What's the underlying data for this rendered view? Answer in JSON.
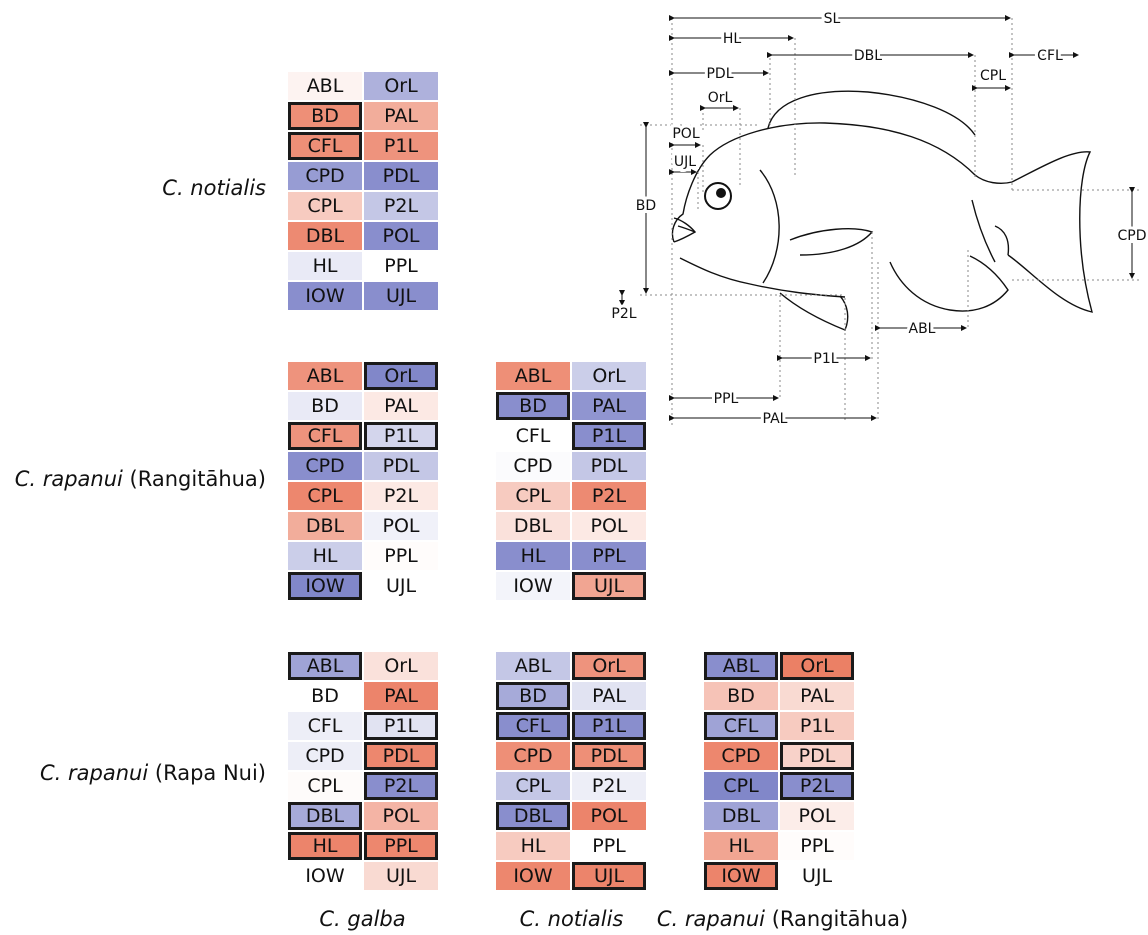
{
  "colors": {
    "red": "#e8694a",
    "blue": "#6b72c0",
    "white": "#ffffff",
    "border": "#1a1a1a"
  },
  "rows": [
    {
      "species": "C. notialis",
      "locality": ""
    },
    {
      "species": "C. rapanui",
      "locality": "(Rangitāhua)"
    },
    {
      "species": "C. rapanui",
      "locality": "(Rapa Nui)"
    }
  ],
  "columns": [
    {
      "species": "C. galba",
      "locality": ""
    },
    {
      "species": "C. notialis",
      "locality": ""
    },
    {
      "species": "C. rapanui",
      "locality": "(Rangitāhua)"
    }
  ],
  "grids": [
    {
      "row": 0,
      "col": 0,
      "cells": [
        {
          "t": "ABL",
          "v": 0.08,
          "b": false
        },
        {
          "t": "OrL",
          "v": -0.55,
          "b": false
        },
        {
          "t": "BD",
          "v": 0.75,
          "b": true
        },
        {
          "t": "PAL",
          "v": 0.55,
          "b": false
        },
        {
          "t": "CFL",
          "v": 0.75,
          "b": true
        },
        {
          "t": "P1L",
          "v": 0.72,
          "b": false
        },
        {
          "t": "CPD",
          "v": -0.7,
          "b": false
        },
        {
          "t": "PDL",
          "v": -0.8,
          "b": false
        },
        {
          "t": "CPL",
          "v": 0.35,
          "b": false
        },
        {
          "t": "P2L",
          "v": -0.4,
          "b": false
        },
        {
          "t": "DBL",
          "v": 0.78,
          "b": false
        },
        {
          "t": "POL",
          "v": -0.8,
          "b": false
        },
        {
          "t": "HL",
          "v": -0.15,
          "b": false
        },
        {
          "t": "PPL",
          "v": 0.0,
          "b": false
        },
        {
          "t": "IOW",
          "v": -0.8,
          "b": false
        },
        {
          "t": "UJL",
          "v": -0.8,
          "b": false
        }
      ]
    },
    {
      "row": 1,
      "col": 0,
      "cells": [
        {
          "t": "ABL",
          "v": 0.72,
          "b": false
        },
        {
          "t": "OrL",
          "v": -0.85,
          "b": true
        },
        {
          "t": "BD",
          "v": -0.15,
          "b": false
        },
        {
          "t": "PAL",
          "v": 0.15,
          "b": false
        },
        {
          "t": "CFL",
          "v": 0.72,
          "b": true
        },
        {
          "t": "P1L",
          "v": -0.3,
          "b": true
        },
        {
          "t": "CPD",
          "v": -0.8,
          "b": false
        },
        {
          "t": "PDL",
          "v": -0.4,
          "b": false
        },
        {
          "t": "CPL",
          "v": 0.8,
          "b": false
        },
        {
          "t": "P2L",
          "v": 0.15,
          "b": false
        },
        {
          "t": "DBL",
          "v": 0.55,
          "b": false
        },
        {
          "t": "POL",
          "v": -0.1,
          "b": false
        },
        {
          "t": "HL",
          "v": -0.35,
          "b": false
        },
        {
          "t": "PPL",
          "v": 0.02,
          "b": false
        },
        {
          "t": "IOW",
          "v": -0.85,
          "b": true
        },
        {
          "t": "UJL",
          "v": 0.0,
          "b": false
        }
      ]
    },
    {
      "row": 1,
      "col": 1,
      "cells": [
        {
          "t": "ABL",
          "v": 0.75,
          "b": false
        },
        {
          "t": "OrL",
          "v": -0.35,
          "b": false
        },
        {
          "t": "BD",
          "v": -0.8,
          "b": true
        },
        {
          "t": "PAL",
          "v": -0.75,
          "b": false
        },
        {
          "t": "CFL",
          "v": 0.0,
          "b": false
        },
        {
          "t": "P1L",
          "v": -0.8,
          "b": true
        },
        {
          "t": "CPD",
          "v": -0.03,
          "b": false
        },
        {
          "t": "PDL",
          "v": -0.4,
          "b": false
        },
        {
          "t": "CPL",
          "v": 0.35,
          "b": false
        },
        {
          "t": "P2L",
          "v": 0.78,
          "b": false
        },
        {
          "t": "DBL",
          "v": 0.2,
          "b": false
        },
        {
          "t": "POL",
          "v": 0.15,
          "b": false
        },
        {
          "t": "HL",
          "v": -0.8,
          "b": false
        },
        {
          "t": "PPL",
          "v": -0.8,
          "b": false
        },
        {
          "t": "IOW",
          "v": -0.08,
          "b": false
        },
        {
          "t": "UJL",
          "v": 0.6,
          "b": true
        }
      ]
    },
    {
      "row": 2,
      "col": 0,
      "cells": [
        {
          "t": "ABL",
          "v": -0.65,
          "b": true
        },
        {
          "t": "OrL",
          "v": 0.2,
          "b": false
        },
        {
          "t": "BD",
          "v": 0.0,
          "b": false
        },
        {
          "t": "PAL",
          "v": 0.82,
          "b": false
        },
        {
          "t": "CFL",
          "v": -0.12,
          "b": false
        },
        {
          "t": "P1L",
          "v": -0.2,
          "b": true
        },
        {
          "t": "CPD",
          "v": -0.12,
          "b": false
        },
        {
          "t": "PDL",
          "v": 0.8,
          "b": true
        },
        {
          "t": "CPL",
          "v": 0.03,
          "b": false
        },
        {
          "t": "P2L",
          "v": -0.8,
          "b": true
        },
        {
          "t": "DBL",
          "v": -0.6,
          "b": true
        },
        {
          "t": "POL",
          "v": 0.5,
          "b": false
        },
        {
          "t": "HL",
          "v": 0.82,
          "b": true
        },
        {
          "t": "PPL",
          "v": 0.8,
          "b": true
        },
        {
          "t": "IOW",
          "v": 0.0,
          "b": false
        },
        {
          "t": "UJL",
          "v": 0.25,
          "b": false
        }
      ]
    },
    {
      "row": 2,
      "col": 1,
      "cells": [
        {
          "t": "ABL",
          "v": -0.4,
          "b": false
        },
        {
          "t": "OrL",
          "v": 0.72,
          "b": true
        },
        {
          "t": "BD",
          "v": -0.6,
          "b": true
        },
        {
          "t": "PAL",
          "v": -0.2,
          "b": false
        },
        {
          "t": "CFL",
          "v": -0.8,
          "b": true
        },
        {
          "t": "P1L",
          "v": -0.8,
          "b": true
        },
        {
          "t": "CPD",
          "v": 0.75,
          "b": false
        },
        {
          "t": "PDL",
          "v": 0.75,
          "b": true
        },
        {
          "t": "CPL",
          "v": -0.4,
          "b": false
        },
        {
          "t": "P2L",
          "v": -0.12,
          "b": false
        },
        {
          "t": "DBL",
          "v": -0.8,
          "b": true
        },
        {
          "t": "POL",
          "v": 0.82,
          "b": false
        },
        {
          "t": "HL",
          "v": 0.35,
          "b": false
        },
        {
          "t": "PPL",
          "v": 0.0,
          "b": false
        },
        {
          "t": "IOW",
          "v": 0.8,
          "b": false
        },
        {
          "t": "UJL",
          "v": 0.82,
          "b": true
        }
      ]
    },
    {
      "row": 2,
      "col": 2,
      "cells": [
        {
          "t": "ABL",
          "v": -0.8,
          "b": true
        },
        {
          "t": "OrL",
          "v": 0.85,
          "b": true
        },
        {
          "t": "BD",
          "v": 0.4,
          "b": false
        },
        {
          "t": "PAL",
          "v": 0.25,
          "b": false
        },
        {
          "t": "CFL",
          "v": -0.65,
          "b": true
        },
        {
          "t": "P1L",
          "v": 0.35,
          "b": false
        },
        {
          "t": "CPD",
          "v": 0.8,
          "b": false
        },
        {
          "t": "PDL",
          "v": 0.3,
          "b": true
        },
        {
          "t": "CPL",
          "v": -0.85,
          "b": false
        },
        {
          "t": "P2L",
          "v": -0.8,
          "b": true
        },
        {
          "t": "DBL",
          "v": -0.65,
          "b": false
        },
        {
          "t": "POL",
          "v": 0.12,
          "b": false
        },
        {
          "t": "HL",
          "v": 0.6,
          "b": false
        },
        {
          "t": "PPL",
          "v": 0.02,
          "b": false
        },
        {
          "t": "IOW",
          "v": 0.82,
          "b": true
        },
        {
          "t": "UJL",
          "v": 0.0,
          "b": false
        }
      ]
    }
  ],
  "fish": {
    "labels": [
      "SL",
      "HL",
      "DBL",
      "CFL",
      "PDL",
      "CPL",
      "OrL",
      "POL",
      "UJL",
      "BD",
      "CPD",
      "P2L",
      "ABL",
      "P1L",
      "PPL",
      "PAL"
    ]
  }
}
